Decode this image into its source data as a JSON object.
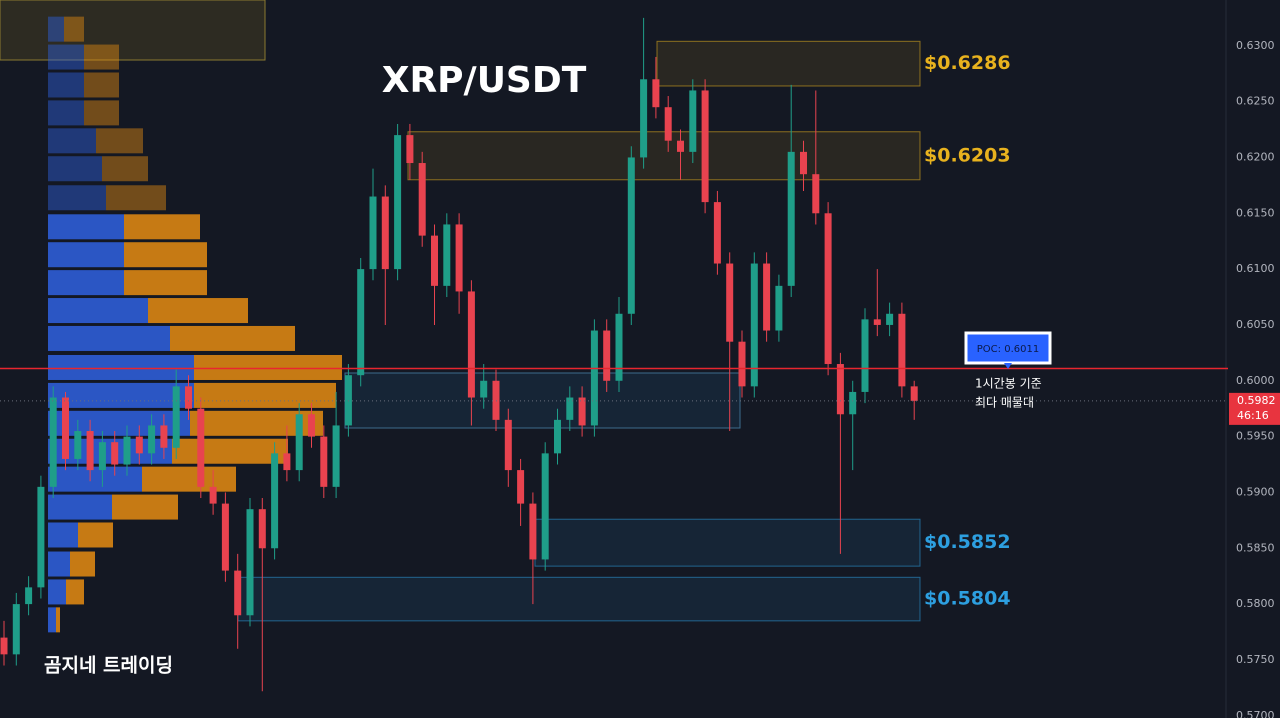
{
  "chart_data": {
    "type": "candlestick",
    "title": "XRP/USDT",
    "watermark": "곰지네 트레이딩",
    "up_color": "#1f9e89",
    "down_color": "#e8434f",
    "ylim": [
      0.5698,
      0.6341
    ],
    "yticks": [
      {
        "value": 0.57,
        "label": "0.5700"
      },
      {
        "value": 0.575,
        "label": "0.5750"
      },
      {
        "value": 0.58,
        "label": "0.5800"
      },
      {
        "value": 0.585,
        "label": "0.5850"
      },
      {
        "value": 0.59,
        "label": "0.5900"
      },
      {
        "value": 0.595,
        "label": "0.5950"
      },
      {
        "value": 0.6,
        "label": "0.6000"
      },
      {
        "value": 0.605,
        "label": "0.6050"
      },
      {
        "value": 0.61,
        "label": "0.6100"
      },
      {
        "value": 0.615,
        "label": "0.6150"
      },
      {
        "value": 0.62,
        "label": "0.6200"
      },
      {
        "value": 0.625,
        "label": "0.6250"
      },
      {
        "value": 0.63,
        "label": "0.6300"
      }
    ],
    "open": [
      0.577,
      0.5755,
      0.58,
      0.5815,
      0.5905,
      0.5985,
      0.593,
      0.5955,
      0.592,
      0.5945,
      0.5925,
      0.595,
      0.5935,
      0.596,
      0.594,
      0.5995,
      0.5975,
      0.5905,
      0.589,
      0.583,
      0.579,
      0.5885,
      0.585,
      0.5935,
      0.592,
      0.597,
      0.595,
      0.5905,
      0.596,
      0.6005,
      0.61,
      0.6165,
      0.61,
      0.622,
      0.6195,
      0.613,
      0.6085,
      0.614,
      0.608,
      0.5985,
      0.6,
      0.5965,
      0.592,
      0.589,
      0.584,
      0.5935,
      0.5965,
      0.5985,
      0.596,
      0.6045,
      0.6,
      0.606,
      0.62,
      0.627,
      0.6245,
      0.6215,
      0.6205,
      0.626,
      0.616,
      0.6105,
      0.6035,
      0.5995,
      0.6105,
      0.6045,
      0.6085,
      0.6205,
      0.6185,
      0.615,
      0.6015,
      0.597,
      0.599,
      0.6055,
      0.605,
      0.606,
      0.5995
    ],
    "high": [
      0.5785,
      0.581,
      0.5825,
      0.5915,
      0.5995,
      0.599,
      0.5965,
      0.5965,
      0.5955,
      0.5955,
      0.596,
      0.596,
      0.597,
      0.597,
      0.601,
      0.6005,
      0.5985,
      0.592,
      0.59,
      0.5845,
      0.5895,
      0.5895,
      0.5945,
      0.596,
      0.598,
      0.598,
      0.596,
      0.599,
      0.6015,
      0.611,
      0.619,
      0.6175,
      0.623,
      0.623,
      0.6205,
      0.614,
      0.615,
      0.615,
      0.609,
      0.6015,
      0.601,
      0.5975,
      0.593,
      0.59,
      0.5945,
      0.5975,
      0.5995,
      0.5995,
      0.6055,
      0.6055,
      0.6075,
      0.621,
      0.6325,
      0.629,
      0.6255,
      0.6225,
      0.627,
      0.627,
      0.617,
      0.6115,
      0.6045,
      0.6115,
      0.6115,
      0.6095,
      0.6265,
      0.6215,
      0.626,
      0.616,
      0.6025,
      0.6,
      0.6065,
      0.61,
      0.607,
      0.607,
      0.6
    ],
    "low": [
      0.5745,
      0.5745,
      0.579,
      0.5805,
      0.5895,
      0.592,
      0.592,
      0.591,
      0.5905,
      0.5915,
      0.5915,
      0.5925,
      0.5925,
      0.593,
      0.593,
      0.5965,
      0.5895,
      0.588,
      0.582,
      0.576,
      0.578,
      0.5722,
      0.584,
      0.591,
      0.591,
      0.594,
      0.5895,
      0.5895,
      0.595,
      0.5995,
      0.609,
      0.605,
      0.609,
      0.618,
      0.612,
      0.605,
      0.6075,
      0.606,
      0.596,
      0.5975,
      0.5955,
      0.5905,
      0.587,
      0.58,
      0.583,
      0.5925,
      0.5955,
      0.595,
      0.595,
      0.599,
      0.599,
      0.605,
      0.619,
      0.6235,
      0.6205,
      0.618,
      0.6195,
      0.615,
      0.6095,
      0.5955,
      0.5985,
      0.5985,
      0.6035,
      0.6035,
      0.6075,
      0.617,
      0.614,
      0.6005,
      0.5845,
      0.592,
      0.598,
      0.604,
      0.604,
      0.5985,
      0.5965
    ],
    "close": [
      0.5755,
      0.58,
      0.5815,
      0.5905,
      0.5985,
      0.593,
      0.5955,
      0.592,
      0.5945,
      0.5925,
      0.595,
      0.5935,
      0.596,
      0.594,
      0.5995,
      0.5975,
      0.5905,
      0.589,
      0.583,
      0.579,
      0.5885,
      0.585,
      0.5935,
      0.592,
      0.597,
      0.595,
      0.5905,
      0.596,
      0.6005,
      0.61,
      0.6165,
      0.61,
      0.622,
      0.6195,
      0.613,
      0.6085,
      0.614,
      0.608,
      0.5985,
      0.6,
      0.5965,
      0.592,
      0.589,
      0.584,
      0.5935,
      0.5965,
      0.5985,
      0.596,
      0.6045,
      0.6,
      0.606,
      0.62,
      0.627,
      0.6245,
      0.6215,
      0.6205,
      0.626,
      0.616,
      0.6105,
      0.6035,
      0.5995,
      0.6105,
      0.6045,
      0.6085,
      0.6205,
      0.6185,
      0.615,
      0.6015,
      0.597,
      0.599,
      0.6055,
      0.605,
      0.606,
      0.5995,
      0.5982
    ],
    "zones": [
      {
        "label": "$0.6286",
        "top": 0.6304,
        "bottom": 0.6264,
        "color": "#e8b21e"
      },
      {
        "label": "$0.6203",
        "top": 0.6223,
        "bottom": 0.618,
        "color": "#e8b21e"
      },
      {
        "label": "$0.5852",
        "top": 0.5876,
        "bottom": 0.5834,
        "color": "#2d9fe0"
      },
      {
        "label": "$0.5804",
        "top": 0.5824,
        "bottom": 0.5785,
        "color": "#2d9fe0"
      }
    ],
    "poc": {
      "label": "POC: 0.6011",
      "value": 0.6011,
      "color": "#e8262f",
      "note": [
        "1시간봉 기준",
        "최다 매물대"
      ]
    },
    "last_price": {
      "value": 0.5982,
      "label": "0.5982",
      "countdown": "46:16"
    },
    "volume_profile": {
      "levels": [
        0.6314,
        0.6289,
        0.6264,
        0.6239,
        0.6214,
        0.6189,
        0.6163,
        0.6137,
        0.6112,
        0.6087,
        0.6062,
        0.6037,
        0.6011,
        0.5986,
        0.5961,
        0.5936,
        0.5911,
        0.5886,
        0.5861,
        0.5835,
        0.581,
        0.5785
      ],
      "buy": [
        16,
        36,
        36,
        36,
        48,
        54,
        58,
        76,
        76,
        76,
        100,
        122,
        146,
        146,
        142,
        124,
        94,
        64,
        30,
        22,
        18,
        8
      ],
      "sell": [
        20,
        35,
        35,
        35,
        47,
        46,
        60,
        76,
        83,
        83,
        100,
        125,
        148,
        142,
        133,
        116,
        94,
        66,
        35,
        25,
        18,
        4
      ],
      "buy_color": "#2f62e0",
      "sell_color": "#e58c12"
    }
  }
}
